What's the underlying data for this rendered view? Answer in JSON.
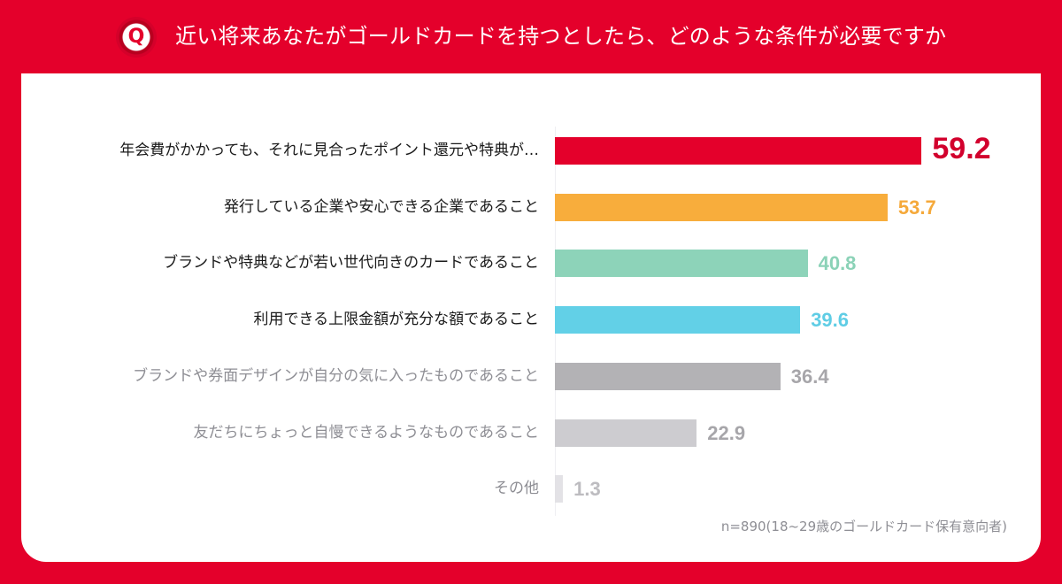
{
  "header": {
    "badge_icon": "Q",
    "title": "近い将来あなたがゴールドカードを持つとしたら、どのような条件が必要ですか"
  },
  "footnote": "n=890(18~29歳のゴールドカード保有意向者)",
  "colors": {
    "background": "#e4002b",
    "card": "#ffffff"
  },
  "chart_data": {
    "type": "bar",
    "orientation": "horizontal",
    "title": "近い将来あなたがゴールドカードを持つとしたら、どのような条件が必要ですか",
    "xlabel": "",
    "ylabel": "",
    "unit": "%",
    "grid": false,
    "legend": null,
    "note": "n=890(18~29歳のゴールドカード保有意向者)",
    "categories": [
      "年会費がかかっても、それに見合ったポイント還元や特典が…",
      "発行している企業や安心できる企業であること",
      "ブランドや特典などが若い世代向きのカードであること",
      "利用できる上限金額が充分な額であること",
      "ブランドや券面デザインが自分の気に入ったものであること",
      "友だちにちょっと自慢できるようなものであること",
      "その他"
    ],
    "values": [
      59.2,
      53.7,
      40.8,
      39.6,
      36.4,
      22.9,
      1.3
    ],
    "bar_colors": [
      "#e4002b",
      "#f8ad3c",
      "#8dd3b9",
      "#62d0e7",
      "#b3b2b5",
      "#cdccd0",
      "#e3e2e6"
    ],
    "label_colors": [
      "#1a1a1a",
      "#1a1a1a",
      "#1a1a1a",
      "#1a1a1a",
      "#8e8e94",
      "#8e8e94",
      "#8e8e94"
    ],
    "value_colors": [
      "#d2002d",
      "#f5a93a",
      "#8bd2b7",
      "#5fcde5",
      "#a7a6aa",
      "#a7a6aa",
      "#bdbcc0"
    ]
  }
}
